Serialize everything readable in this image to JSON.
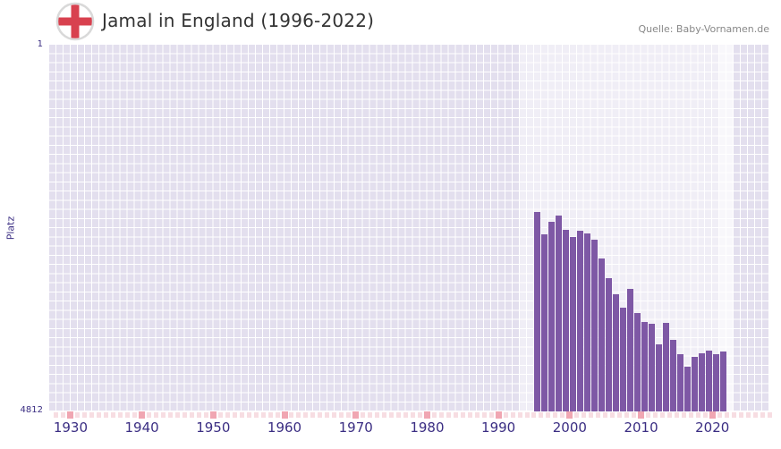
{
  "header": {
    "title": "Jamal in England (1996-2022)",
    "source": "Quelle: Baby-Vornamen.de",
    "flag": "england-flag-icon"
  },
  "chart_data": {
    "type": "bar",
    "title": "Jamal in England (1996-2022)",
    "xlabel": "",
    "ylabel": "Platz",
    "y_axis": {
      "min": 1,
      "max": 4812,
      "inverted": true,
      "top_tick_label": "1",
      "bottom_tick_label": "4812"
    },
    "x_axis": {
      "min": 1927.5,
      "max": 2028.5,
      "ticks": [
        1930,
        1940,
        1950,
        1960,
        1970,
        1980,
        1990,
        2000,
        2010,
        2020
      ]
    },
    "grid": true,
    "legend": false,
    "years": [
      1996,
      1997,
      1998,
      1999,
      2000,
      2001,
      2002,
      2003,
      2004,
      2005,
      2006,
      2007,
      2008,
      2009,
      2010,
      2011,
      2012,
      2013,
      2014,
      2015,
      2016,
      2017,
      2018,
      2019,
      2020,
      2021,
      2022
    ],
    "values": [
      2200,
      2490,
      2330,
      2240,
      2430,
      2520,
      2440,
      2480,
      2560,
      2810,
      3060,
      3270,
      3450,
      3210,
      3520,
      3640,
      3660,
      3930,
      3650,
      3870,
      4060,
      4230,
      4100,
      4050,
      4010,
      4060,
      4030
    ],
    "highlight_region": {
      "start": 1993.5,
      "end": 2023.5
    },
    "recent_band": {
      "start": 2021.5,
      "end": 2023.5
    },
    "colors": {
      "bar": "#7e58a5",
      "plot_background": "#e3dfee",
      "grid_line": "#ffffff",
      "axis_text": "#3b2e83",
      "title_text": "#333333",
      "source_text": "#888888",
      "tick_marker_minor": "#f7dde2",
      "tick_marker_major": "#f0a6b2",
      "flag_cross": "#d8414f",
      "flag_ring": "#d9d9d9"
    }
  }
}
